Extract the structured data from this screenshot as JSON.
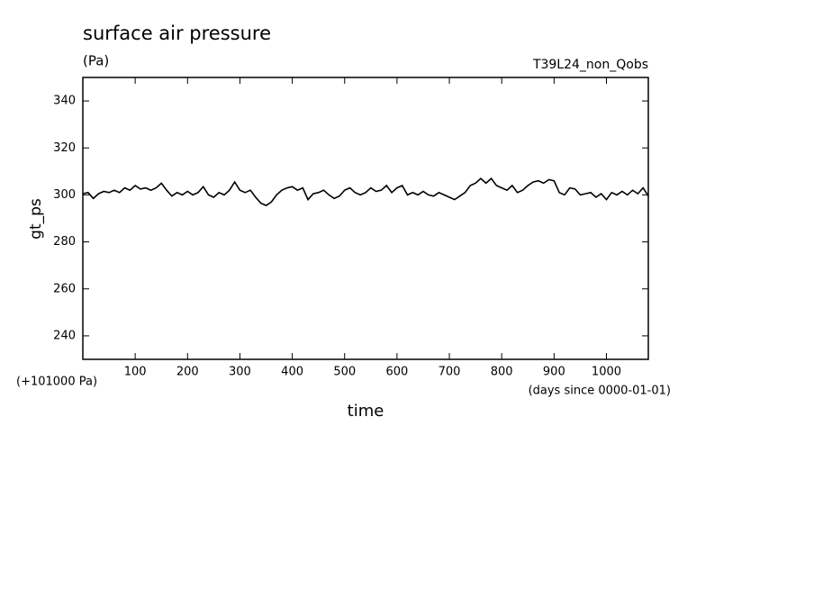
{
  "chart_data": {
    "type": "line",
    "title": "surface air pressure",
    "units": "(Pa)",
    "subtitle": "T39L24_non_Qobs",
    "ylabel": "gt_ps",
    "xlabel": "time",
    "y_offset_note": "(+101000 Pa)",
    "x_units": "(days since 0000-01-01)",
    "xlim": [
      0,
      1080
    ],
    "ylim": [
      230,
      350
    ],
    "xticks": [
      100,
      200,
      300,
      400,
      500,
      600,
      700,
      800,
      900,
      1000
    ],
    "yticks": [
      240,
      260,
      280,
      300,
      320,
      340
    ],
    "grid": false,
    "x": [
      0,
      10,
      20,
      30,
      40,
      50,
      60,
      70,
      80,
      90,
      100,
      110,
      120,
      130,
      140,
      150,
      160,
      170,
      180,
      190,
      200,
      210,
      220,
      230,
      240,
      250,
      260,
      270,
      280,
      290,
      300,
      310,
      320,
      330,
      340,
      350,
      360,
      370,
      380,
      390,
      400,
      410,
      420,
      430,
      440,
      450,
      460,
      470,
      480,
      490,
      500,
      510,
      520,
      530,
      540,
      550,
      560,
      570,
      580,
      590,
      600,
      610,
      620,
      630,
      640,
      650,
      660,
      670,
      680,
      690,
      700,
      710,
      720,
      730,
      740,
      750,
      760,
      770,
      780,
      790,
      800,
      810,
      820,
      830,
      840,
      850,
      860,
      870,
      880,
      890,
      900,
      910,
      920,
      930,
      940,
      950,
      960,
      970,
      980,
      990,
      1000,
      1010,
      1020,
      1030,
      1040,
      1050,
      1060,
      1070,
      1080
    ],
    "series": [
      {
        "name": "gt_ps",
        "color": "#000000",
        "values": [
          300.5,
          301,
          298.5,
          300.5,
          301.5,
          301,
          302,
          301,
          303,
          302,
          304,
          302.5,
          303,
          302,
          303,
          305,
          302,
          299.5,
          301,
          300,
          301.5,
          300,
          301,
          303.5,
          300,
          299,
          301,
          300,
          302,
          305.5,
          302,
          301,
          302,
          299,
          296.5,
          295.5,
          297,
          300,
          302,
          303,
          303.5,
          302,
          303,
          298,
          300.5,
          301,
          302,
          300,
          298.5,
          299.5,
          302,
          303,
          301,
          300,
          301,
          303,
          301.5,
          302,
          304,
          301,
          303,
          304,
          300,
          301,
          300,
          301.5,
          300,
          299.5,
          301,
          300,
          299,
          298,
          299.5,
          301,
          304,
          305,
          307,
          305,
          307,
          304,
          303,
          302,
          304,
          301,
          302,
          304,
          305.5,
          306,
          305,
          306.5,
          306,
          301,
          300,
          303,
          302.5,
          300,
          300.5,
          301,
          299,
          300.5,
          298,
          301,
          300,
          301.5,
          300,
          302,
          300.5,
          303,
          299.5
        ]
      }
    ]
  }
}
